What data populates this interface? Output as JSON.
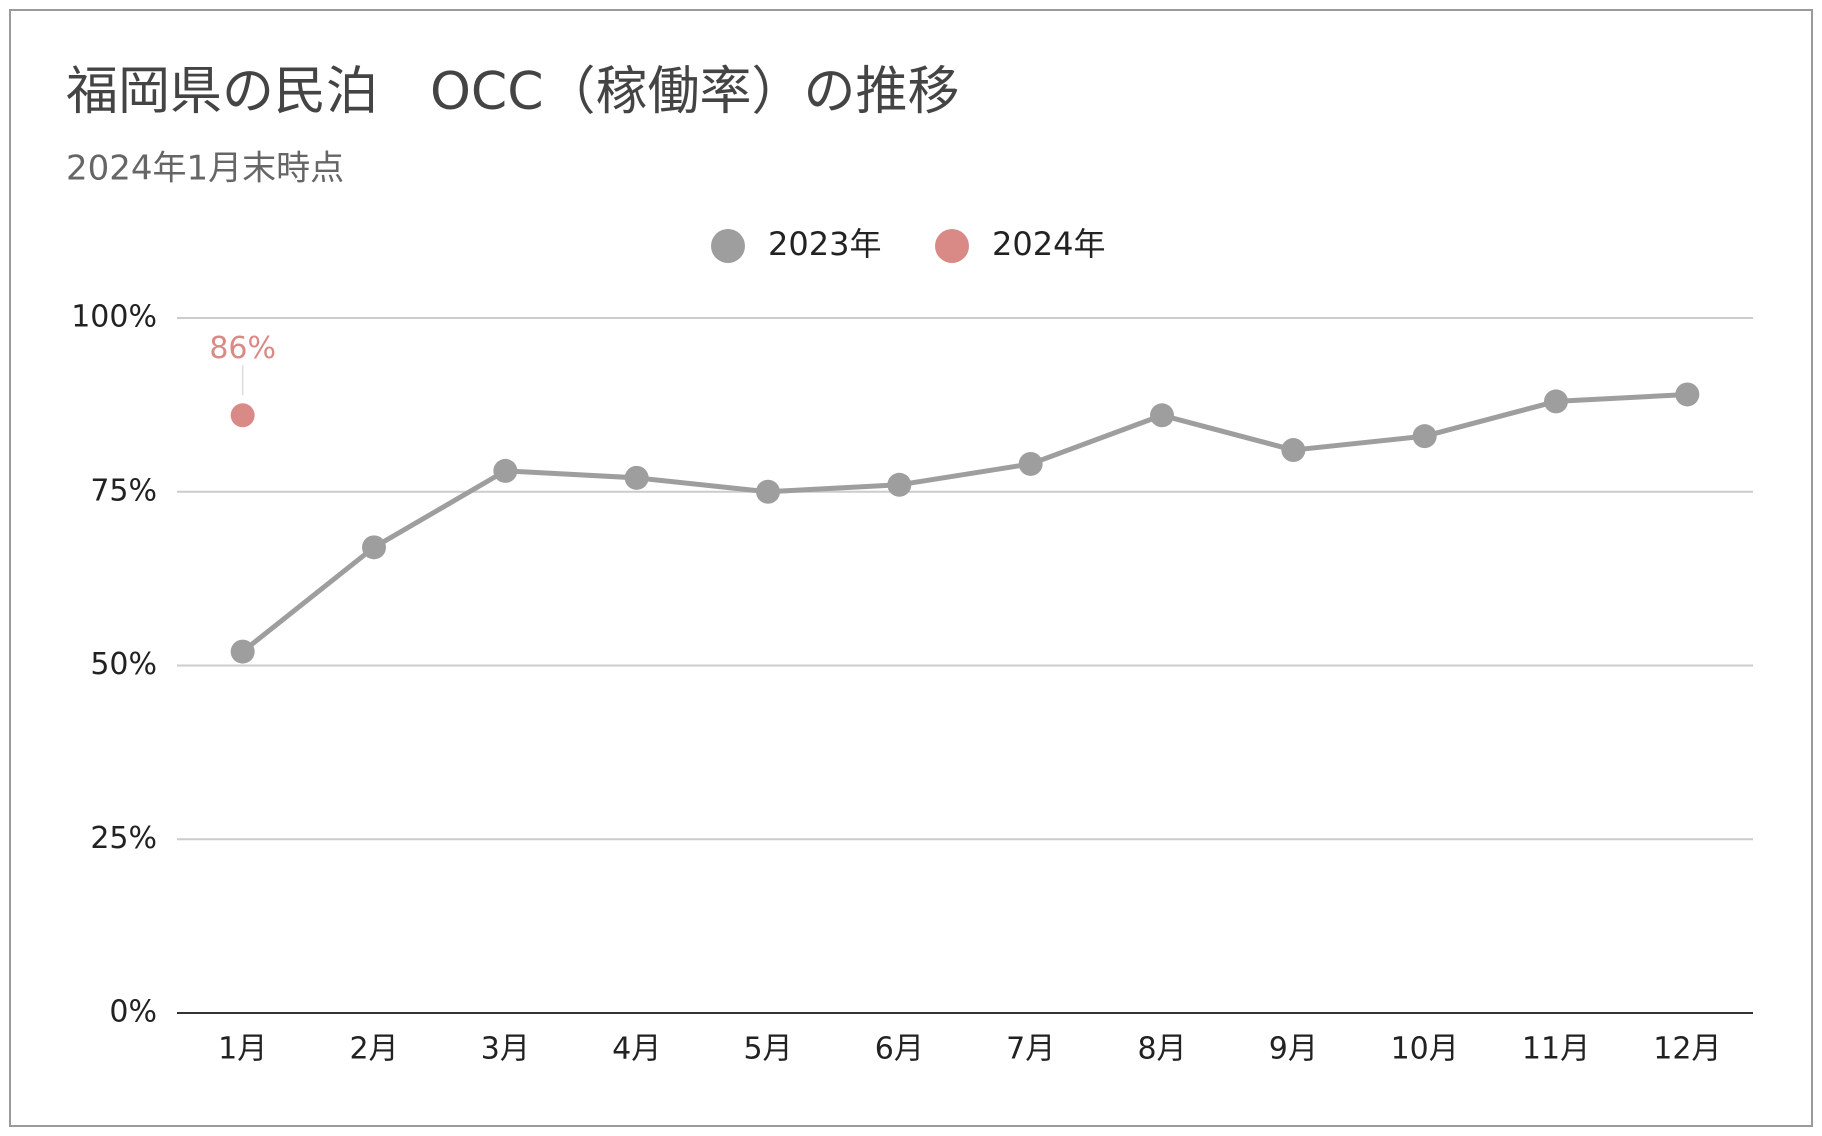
{
  "chart_data": {
    "type": "line",
    "title": "福岡県の民泊　OCC（稼働率）の推移",
    "subtitle": "2024年1月末時点",
    "categories": [
      "1月",
      "2月",
      "3月",
      "4月",
      "5月",
      "6月",
      "7月",
      "8月",
      "9月",
      "10月",
      "11月",
      "12月"
    ],
    "series": [
      {
        "name": "2023年",
        "color": "#9e9e9e",
        "values": [
          52,
          67,
          78,
          77,
          75,
          76,
          79,
          86,
          81,
          83,
          88,
          89
        ]
      },
      {
        "name": "2024年",
        "color": "#d98a87",
        "values": [
          86,
          null,
          null,
          null,
          null,
          null,
          null,
          null,
          null,
          null,
          null,
          null
        ],
        "value_labels": [
          "86%",
          null,
          null,
          null,
          null,
          null,
          null,
          null,
          null,
          null,
          null,
          null
        ]
      }
    ],
    "ylim": [
      0,
      100
    ],
    "yticks": [
      {
        "value": 0,
        "label": "0%"
      },
      {
        "value": 25,
        "label": "25%"
      },
      {
        "value": 50,
        "label": "50%"
      },
      {
        "value": 75,
        "label": "75%"
      },
      {
        "value": 100,
        "label": "100%"
      }
    ],
    "grid": true,
    "legend": "top"
  }
}
